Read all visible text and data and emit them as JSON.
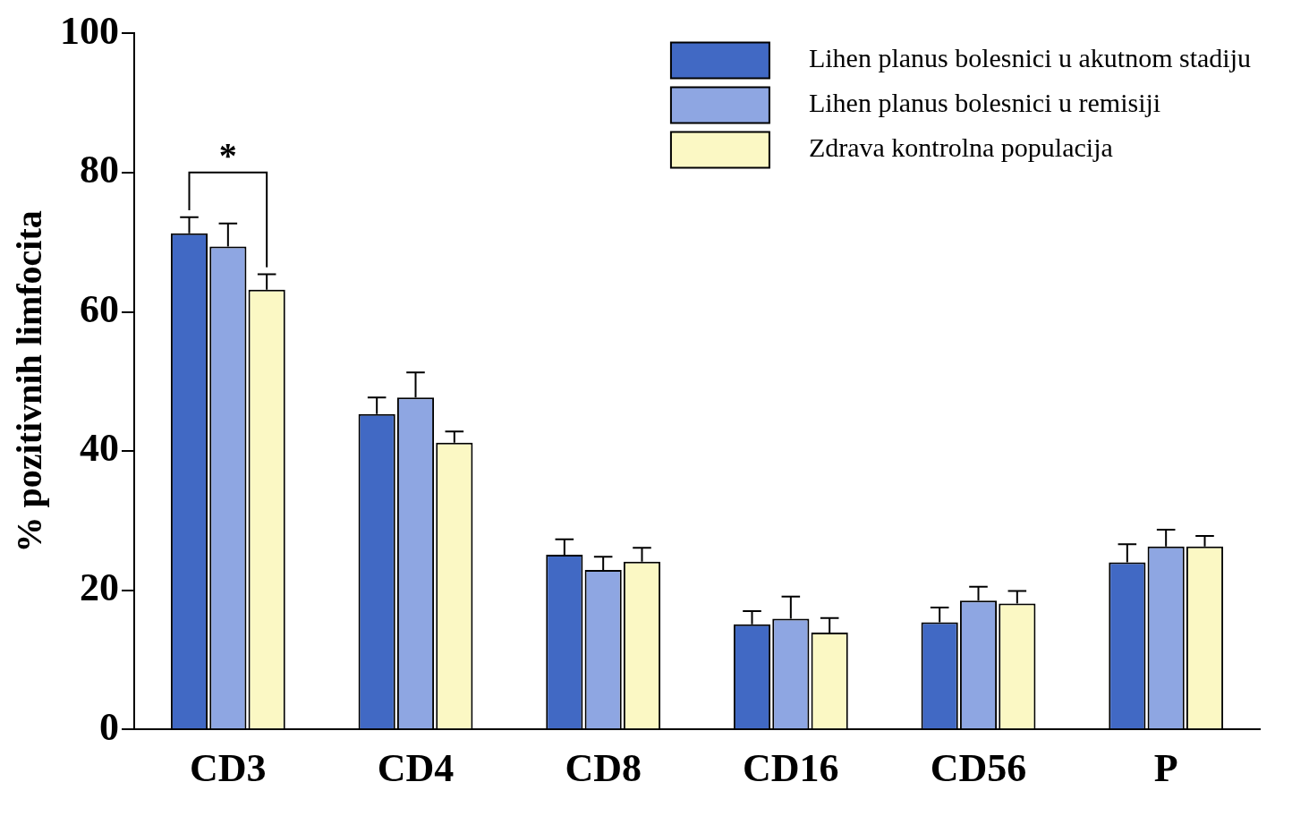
{
  "chart_data": {
    "type": "bar",
    "ylabel": "% pozitivnih limfocita",
    "categories": [
      "CD3",
      "CD4",
      "CD8",
      "CD16",
      "CD56",
      "P"
    ],
    "series": [
      {
        "name": "Lihen planus bolesnici u akutnom stadiju",
        "color": "#4169c4",
        "values": [
          71.3,
          45.3,
          25.1,
          15.1,
          15.4,
          24.0
        ],
        "errors": [
          [
            71.3,
            73.6
          ],
          [
            45.3,
            47.7
          ],
          [
            25.1,
            27.3
          ],
          [
            15.1,
            17.0
          ],
          [
            15.4,
            17.5
          ],
          [
            24.0,
            26.6
          ]
        ]
      },
      {
        "name": "Lihen planus bolesnici u remisiji",
        "color": "#8ea6e2",
        "values": [
          69.4,
          47.7,
          22.9,
          15.9,
          18.5,
          26.3
        ],
        "errors": [
          [
            69.4,
            72.7
          ],
          [
            47.7,
            51.3
          ],
          [
            22.9,
            24.8
          ],
          [
            15.9,
            19.1
          ],
          [
            18.5,
            20.5
          ],
          [
            26.3,
            28.7
          ]
        ]
      },
      {
        "name": "Zdrava kontrolna populacija",
        "color": "#fbf8c4",
        "values": [
          63.2,
          41.2,
          24.1,
          13.9,
          18.1,
          26.3
        ],
        "errors": [
          [
            63.2,
            65.4
          ],
          [
            41.2,
            42.8
          ],
          [
            24.1,
            26.1
          ],
          [
            13.9,
            16.0
          ],
          [
            18.1,
            19.9
          ],
          [
            26.3,
            27.8
          ]
        ]
      }
    ],
    "ylim": [
      0,
      100
    ],
    "yticks": [
      0,
      20,
      40,
      60,
      80,
      100
    ],
    "grid": false,
    "legend": "top right",
    "annotations": [
      "*"
    ]
  }
}
